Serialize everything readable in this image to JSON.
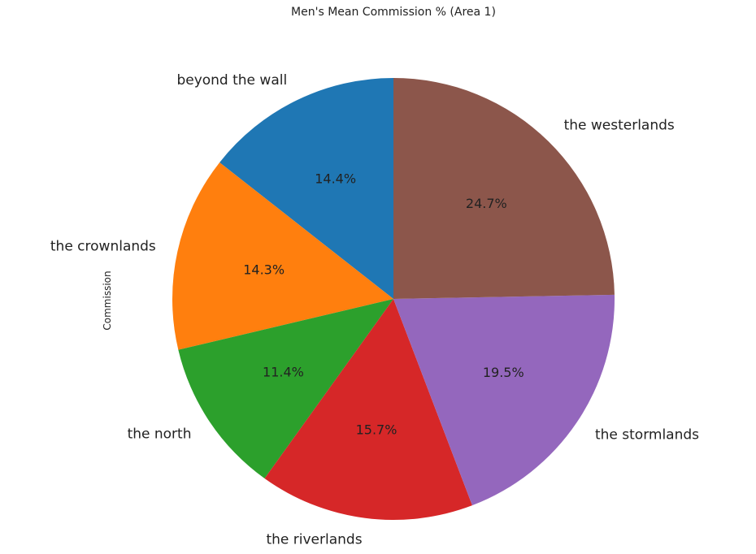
{
  "chart_data": {
    "type": "pie",
    "title": "Men's Mean Commission % (Area 1)",
    "ylabel": "Commission",
    "start_angle_deg": 90,
    "direction": "counterclockwise",
    "slices": [
      {
        "label": "beyond the wall",
        "value": 14.4,
        "pct_label": "14.4%",
        "color": "#1f77b4"
      },
      {
        "label": "the crownlands",
        "value": 14.3,
        "pct_label": "14.3%",
        "color": "#ff7f0e"
      },
      {
        "label": "the north",
        "value": 11.4,
        "pct_label": "11.4%",
        "color": "#2ca02c"
      },
      {
        "label": "the riverlands",
        "value": 15.7,
        "pct_label": "15.7%",
        "color": "#d62728"
      },
      {
        "label": "the stormlands",
        "value": 19.5,
        "pct_label": "19.5%",
        "color": "#9467bd"
      },
      {
        "label": "the westerlands",
        "value": 24.7,
        "pct_label": "24.7%",
        "color": "#8c564b"
      }
    ]
  }
}
